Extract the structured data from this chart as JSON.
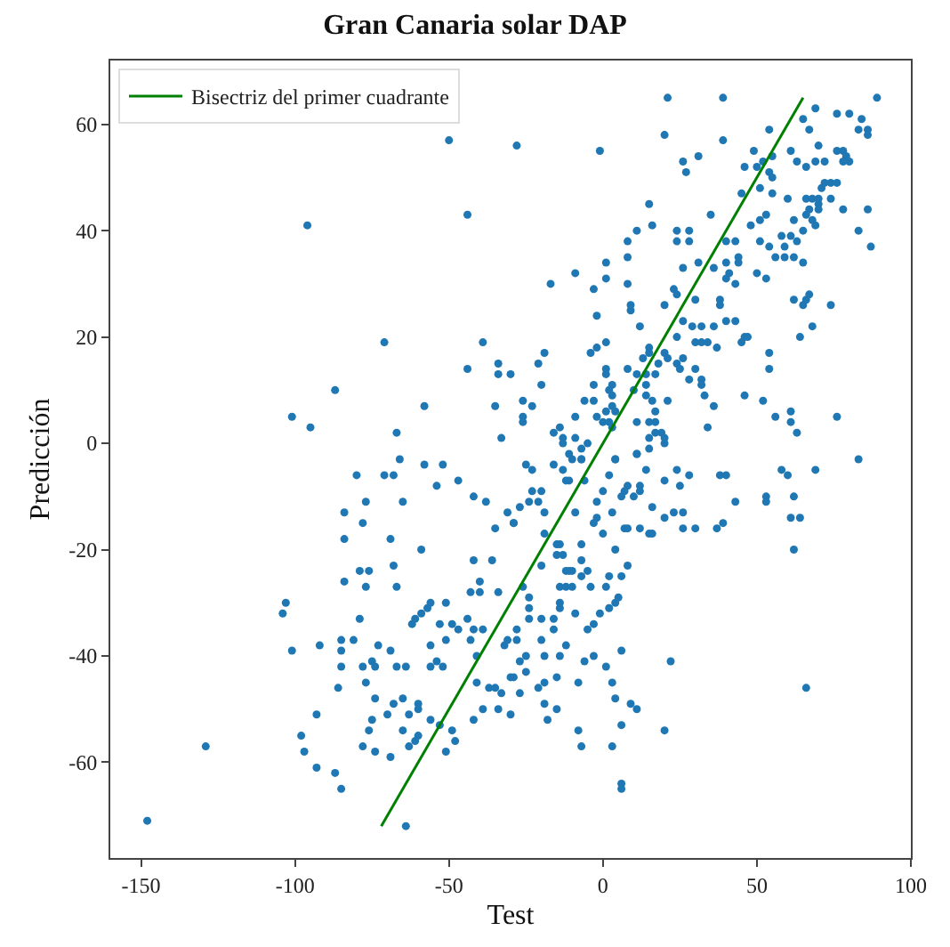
{
  "chart_data": {
    "type": "scatter",
    "title": "Gran Canaria solar DAP",
    "xlabel": "Test",
    "ylabel": "Predicción",
    "xlim": [
      -160,
      100
    ],
    "ylim": [
      -78,
      72
    ],
    "xticks": [
      -150,
      -100,
      -50,
      0,
      50,
      100
    ],
    "yticks": [
      -60,
      -40,
      -20,
      0,
      20,
      40,
      60
    ],
    "grid": false,
    "legend": "top left",
    "series": [
      {
        "color": "#1f77b4",
        "marker": "circle",
        "x": [
          -148,
          -129,
          -103,
          -104,
          -101,
          -92,
          -93,
          -98,
          -97,
          -93,
          -87,
          -85,
          -84,
          -84,
          -80,
          -77,
          -78,
          -84,
          -79,
          -76,
          -77,
          -79,
          -85,
          -81,
          -85,
          -85,
          -78,
          -86,
          -77,
          -75,
          -74,
          -73,
          -74,
          -75,
          -76,
          -78,
          -74,
          -71,
          -68,
          -66,
          -58,
          -52,
          -54,
          -47,
          -65,
          -69,
          -68,
          -67,
          -59,
          -62,
          -61,
          -59,
          -57,
          -56,
          -69,
          -67,
          -64,
          -56,
          -54,
          -52,
          -56,
          -53,
          -51,
          -51,
          -49,
          -47,
          -44,
          -43,
          -42,
          -39,
          -42,
          -38,
          -42,
          -36,
          -35,
          -31,
          -29,
          -43,
          -40,
          -40,
          -34,
          -41,
          -32,
          -41,
          -37,
          -35,
          -33,
          -30,
          -39,
          -42,
          -34,
          -30,
          -56,
          -53,
          -49,
          -48,
          -51,
          -65,
          -60,
          -61,
          -63,
          -69,
          -64,
          -60,
          -60,
          -63,
          -68,
          -65,
          -70,
          -50,
          -28,
          -44,
          -96,
          -71,
          -39,
          -34,
          -44,
          -34,
          -87,
          -58,
          -35,
          -101,
          -95,
          -67,
          -33,
          -1,
          21,
          39,
          20,
          39,
          69,
          89,
          65,
          76,
          80,
          84,
          83,
          86,
          86,
          67,
          54,
          31,
          26,
          27,
          49,
          46,
          50,
          52,
          55,
          54,
          55,
          61,
          63,
          66,
          69,
          70,
          72,
          76,
          78,
          79,
          80,
          78,
          76,
          74,
          71,
          72,
          66,
          68,
          70,
          70,
          67,
          66,
          70,
          74,
          78,
          86,
          83,
          87,
          68,
          69,
          65,
          60,
          55,
          51,
          45,
          35,
          51,
          53,
          48,
          51,
          54,
          58,
          59,
          61,
          62,
          63,
          59,
          56,
          62,
          65,
          24,
          28,
          24,
          28,
          40,
          43,
          44,
          44,
          40,
          31,
          26,
          36,
          41,
          50,
          53,
          43,
          40,
          23,
          24,
          30,
          38,
          38,
          20,
          8,
          11,
          16,
          15,
          8,
          8,
          1,
          1,
          -9,
          -3,
          -17,
          -2,
          9,
          12,
          26,
          29,
          32,
          36,
          40,
          43,
          46,
          47,
          45,
          30,
          32,
          34,
          37,
          24,
          20,
          15,
          21,
          26,
          24,
          25,
          28,
          30,
          32,
          32,
          33,
          36,
          34,
          46,
          52,
          56,
          61,
          61,
          63,
          54,
          54,
          64,
          68,
          62,
          65,
          66,
          67,
          74,
          76,
          83,
          15,
          13,
          8,
          11,
          14,
          17,
          18,
          10,
          14,
          14,
          16,
          17,
          15,
          17,
          21,
          19,
          17,
          15,
          20,
          20,
          11,
          11,
          4,
          3,
          0,
          2,
          1,
          3,
          4,
          3,
          2,
          3,
          1,
          1,
          1,
          -2,
          -4,
          -3,
          -6,
          -9,
          -3,
          -2,
          -14,
          -16,
          -13,
          -13,
          -11,
          -9,
          -5,
          -7,
          -21,
          -19,
          -20,
          -30,
          -26,
          -23,
          -26,
          -26,
          -25,
          9,
          -23,
          -16,
          -10,
          -7,
          -7,
          -13,
          -12,
          -11,
          -6,
          4,
          11,
          15,
          24,
          28,
          20,
          25,
          14,
          12,
          12,
          8,
          7,
          2,
          0,
          6,
          10,
          -2,
          3,
          -2,
          -3,
          -9,
          -19,
          -20,
          -23,
          -21,
          -24,
          -27,
          -29,
          -19,
          -15,
          -14,
          -15,
          -13,
          -7,
          -7,
          -7,
          -5,
          -12,
          -11,
          -10,
          -12,
          -10,
          -14,
          -14,
          -14,
          -16,
          -20,
          -20,
          -24,
          -24,
          -24,
          -26,
          -28,
          -28,
          -31,
          -20,
          -16,
          -9,
          -14,
          -12,
          -19,
          -25,
          -27,
          -25,
          -29,
          -27,
          -21,
          -19,
          -15,
          -19,
          -15,
          -18,
          -8,
          -8,
          -7,
          -6,
          -3,
          1,
          3,
          4,
          9,
          11,
          6,
          3,
          6,
          6,
          6,
          -5,
          -3,
          -1,
          2,
          4,
          5,
          6,
          1,
          2,
          8,
          -4,
          4,
          0,
          7,
          8,
          12,
          15,
          16,
          16,
          20,
          23,
          26,
          26,
          30,
          37,
          39,
          43,
          38,
          40,
          53,
          53,
          58,
          60,
          62,
          61,
          64,
          62,
          69,
          66,
          20,
          22
        ],
        "values": [
          -71,
          -57,
          -30,
          -32,
          -39,
          -38,
          -51,
          -55,
          -58,
          -61,
          -62,
          -65,
          -13,
          -18,
          -6,
          -11,
          -15,
          -26,
          -24,
          -24,
          -27,
          -33,
          -37,
          -37,
          -39,
          -42,
          -42,
          -46,
          -45,
          -41,
          -42,
          -38,
          -48,
          -52,
          -54,
          -57,
          -58,
          -6,
          -6,
          -3,
          -4,
          -4,
          -8,
          -7,
          -11,
          -18,
          -23,
          -27,
          -20,
          -34,
          -33,
          -32,
          -31,
          -30,
          -39,
          -42,
          -42,
          -42,
          -41,
          -42,
          -38,
          -34,
          -30,
          -37,
          -34,
          -35,
          -33,
          -37,
          -35,
          -35,
          -10,
          -11,
          -22,
          -22,
          -16,
          -13,
          -15,
          -28,
          -26,
          -28,
          -28,
          -40,
          -38,
          -45,
          -46,
          -46,
          -47,
          -44,
          -50,
          -52,
          -50,
          -51,
          -52,
          -53,
          -54,
          -56,
          -58,
          -54,
          -55,
          -56,
          -57,
          -59,
          -72,
          -50,
          -49,
          -51,
          -49,
          -48,
          -51,
          57,
          56,
          43,
          41,
          19,
          19,
          15,
          14,
          13,
          10,
          7,
          7,
          5,
          3,
          2,
          1,
          55,
          65,
          65,
          58,
          57,
          63,
          65,
          61,
          62,
          62,
          61,
          59,
          59,
          58,
          59,
          59,
          54,
          53,
          51,
          55,
          52,
          52,
          53,
          54,
          51,
          50,
          55,
          53,
          52,
          53,
          56,
          53,
          55,
          55,
          54,
          53,
          53,
          49,
          49,
          48,
          49,
          46,
          46,
          46,
          45,
          44,
          43,
          44,
          46,
          44,
          44,
          40,
          37,
          42,
          41,
          40,
          46,
          47,
          48,
          47,
          43,
          42,
          43,
          41,
          38,
          37,
          39,
          37,
          39,
          42,
          38,
          35,
          35,
          35,
          34,
          40,
          40,
          38,
          38,
          38,
          38,
          35,
          34,
          34,
          34,
          33,
          33,
          32,
          32,
          31,
          30,
          31,
          29,
          28,
          27,
          27,
          26,
          26,
          38,
          40,
          41,
          45,
          35,
          30,
          34,
          31,
          32,
          29,
          30,
          24,
          25,
          22,
          23,
          22,
          22,
          22,
          23,
          23,
          20,
          20,
          19,
          19,
          19,
          19,
          18,
          20,
          17,
          18,
          16,
          16,
          15,
          14,
          12,
          14,
          12,
          11,
          9,
          7,
          3,
          9,
          8,
          5,
          6,
          4,
          2,
          17,
          14,
          20,
          22,
          27,
          26,
          27,
          28,
          26,
          5,
          -3,
          17,
          16,
          14,
          13,
          13,
          13,
          15,
          10,
          11,
          9,
          8,
          6,
          4,
          4,
          8,
          2,
          2,
          1,
          1,
          0,
          4,
          -2,
          -3,
          3,
          4,
          4,
          6,
          7,
          6,
          9,
          10,
          11,
          13,
          14,
          19,
          18,
          17,
          11,
          8,
          5,
          8,
          5,
          3,
          2,
          1,
          0,
          -2,
          1,
          0,
          -3,
          15,
          17,
          11,
          13,
          8,
          7,
          5,
          4,
          -4,
          26,
          -5,
          -4,
          -3,
          -1,
          -3,
          -5,
          -7,
          -7,
          -7,
          -3,
          -2,
          -1,
          -5,
          -6,
          -7,
          -8,
          -5,
          -8,
          -9,
          -8,
          -9,
          -6,
          -9,
          -10,
          -10,
          -11,
          -13,
          -14,
          -15,
          -13,
          -13,
          -9,
          -9,
          -11,
          -11,
          -12,
          -15,
          -17,
          -19,
          -19,
          -21,
          -21,
          -19,
          -22,
          -25,
          -24,
          -24,
          -24,
          -24,
          -27,
          -27,
          -27,
          -30,
          -31,
          -33,
          -23,
          -33,
          -29,
          -31,
          -33,
          -27,
          -35,
          -37,
          -37,
          -37,
          -35,
          -32,
          -40,
          -38,
          -40,
          -40,
          -41,
          -43,
          -44,
          -47,
          -46,
          -45,
          -44,
          -49,
          -50,
          -52,
          -45,
          -54,
          -57,
          -41,
          -40,
          -42,
          -45,
          -48,
          -49,
          -50,
          -53,
          -57,
          -64,
          -65,
          -39,
          -35,
          -34,
          -32,
          -31,
          -30,
          -29,
          -25,
          -27,
          -25,
          -23,
          -27,
          -20,
          -17,
          -16,
          -16,
          -16,
          -17,
          -17,
          -12,
          -14,
          -13,
          -13,
          -16,
          -16,
          -16,
          -15,
          -11,
          -6,
          -6,
          -10,
          -11,
          -5,
          -6,
          -10,
          -14,
          -14,
          -20,
          -5,
          -46,
          -54,
          -41
        ]
      },
      {
        "type": "line",
        "name": "Bisectriz del primer cuadrante",
        "color": "#008000",
        "x": [
          -72,
          65
        ],
        "values": [
          -72,
          65
        ]
      }
    ]
  }
}
